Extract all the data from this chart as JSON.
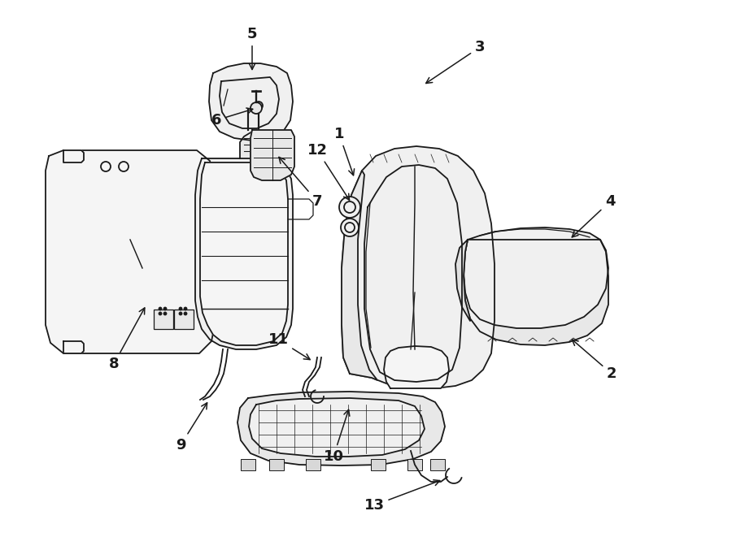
{
  "bg_color": "#ffffff",
  "line_color": "#1a1a1a",
  "figsize": [
    9.0,
    6.61
  ],
  "dpi": 100,
  "label_font": 13,
  "lw": 1.3
}
